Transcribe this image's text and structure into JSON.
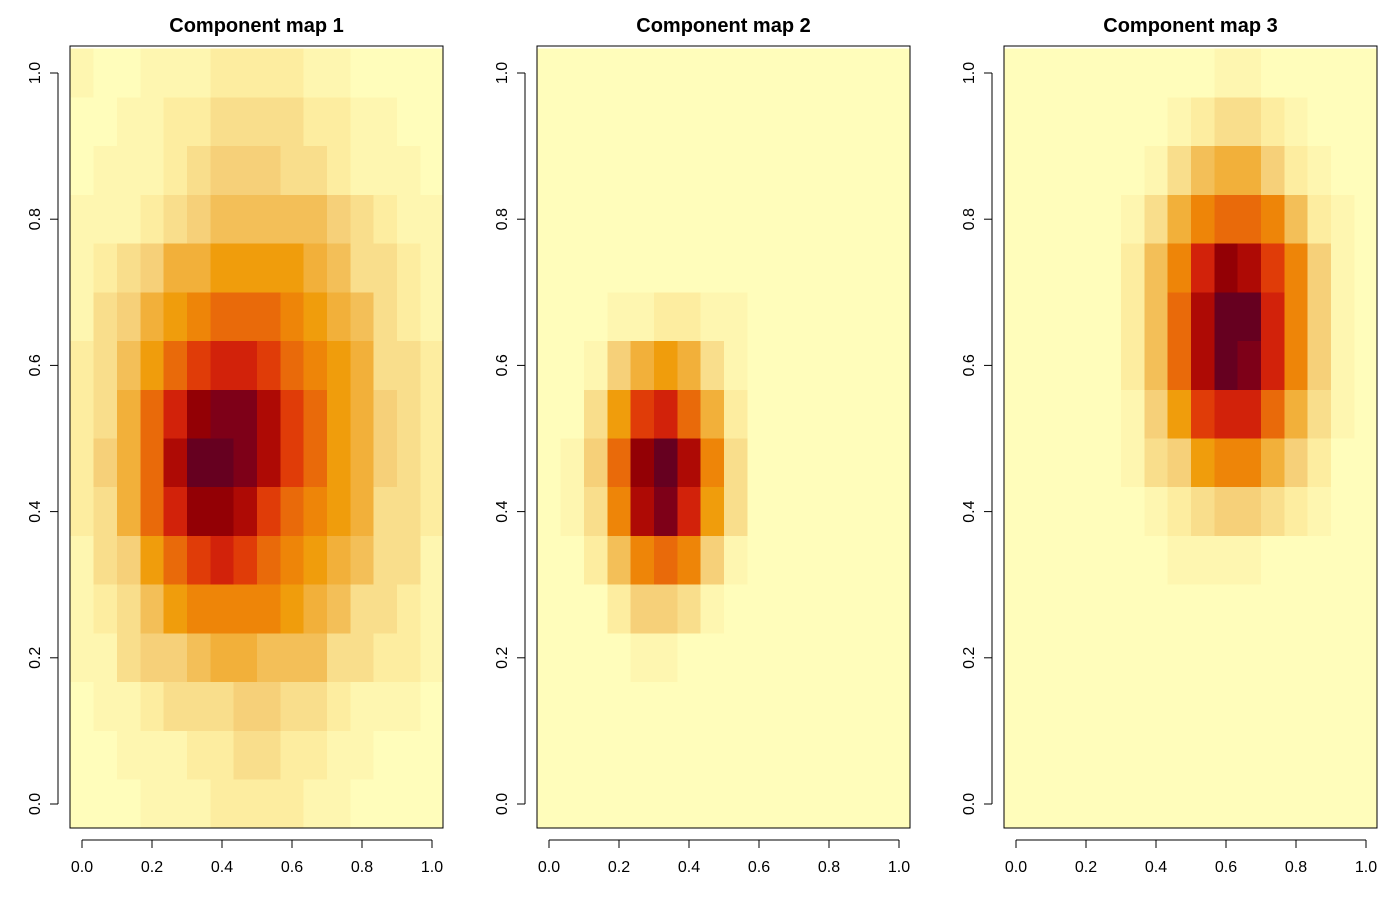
{
  "palette": [
    "#FFFDBB",
    "#FEF6B0",
    "#FDEDA0",
    "#F9DE8C",
    "#F6D079",
    "#F3BF58",
    "#F2B03A",
    "#F09D0C",
    "#EE8508",
    "#E96A0A",
    "#E03C08",
    "#D2220A",
    "#AE0A05",
    "#930005",
    "#7E0018",
    "#660020"
  ],
  "chart_data": [
    {
      "type": "heatmap",
      "title": "Component map 1",
      "xlim": [
        0,
        1
      ],
      "ylim": [
        0,
        1
      ],
      "x_ticks": [
        "0.0",
        "0.2",
        "0.4",
        "0.6",
        "0.8",
        "1.0"
      ],
      "y_ticks": [
        "0.0",
        "0.2",
        "0.4",
        "0.6",
        "0.8",
        "1.0"
      ],
      "grid_size": [
        16,
        16
      ],
      "z_levels_rows_top_to_bottom": [
        "1001112222110000",
        "0011223333221100",
        "0111234443321110",
        "1112345555543211",
        "1234667777653321",
        "1346789998765321",
        "23579ABBA9876332",
        "2369BDEECA976432",
        "2469CFFECA976432",
        "2369BDDCA9876332",
        "13479ABA98765331",
        "1235788887653321",
        "1134456655533221",
        "0112333443321110",
        "0011122332211000",
        "0001112222110000"
      ]
    },
    {
      "type": "heatmap",
      "title": "Component map 2",
      "xlim": [
        0,
        1
      ],
      "ylim": [
        0,
        1
      ],
      "x_ticks": [
        "0.0",
        "0.2",
        "0.4",
        "0.6",
        "0.8",
        "1.0"
      ],
      "y_ticks": [
        "0.0",
        "0.2",
        "0.4",
        "0.6",
        "0.8",
        "1.0"
      ],
      "grid_size": [
        16,
        16
      ],
      "z_levels_rows_top_to_bottom": [
        "0000000000000000",
        "0000000000000000",
        "0000000000000000",
        "0000000000000000",
        "0000000000000000",
        "0001122110000000",
        "0014676310000000",
        "0037AB9620000000",
        "0149DFC830000000",
        "0138CEB730000000",
        "0025898410000000",
        "0002443100000000",
        "0000110000000000",
        "0000000000000000",
        "0000000000000000",
        "0000000000000000"
      ]
    },
    {
      "type": "heatmap",
      "title": "Component map 3",
      "xlim": [
        0,
        1
      ],
      "ylim": [
        0,
        1
      ],
      "x_ticks": [
        "0.0",
        "0.2",
        "0.4",
        "0.6",
        "0.8",
        "1.0"
      ],
      "y_ticks": [
        "0.0",
        "0.2",
        "0.4",
        "0.6",
        "0.8",
        "1.0"
      ],
      "grid_size": [
        16,
        16
      ],
      "z_levels_rows_top_to_bottom": [
        "0000000001100000",
        "0000000123321000",
        "0000001356642100",
        "0000013689985210",
        "00000258BDCA8410",
        "00000259CFFB8410",
        "00000259CFEB8410",
        "00000147ABB96310",
        "0000013478864200",
        "0000001234432100",
        "0000000111100000",
        "0000000000000000",
        "0000000000000000",
        "0000000000000000",
        "0000000000000000",
        "0000000000000000"
      ]
    }
  ]
}
